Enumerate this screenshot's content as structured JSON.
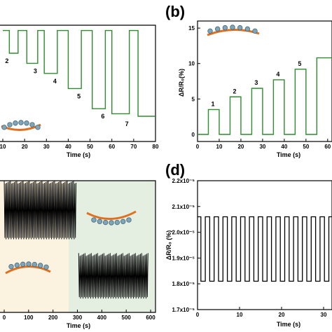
{
  "panels": {
    "b": {
      "label": "(b)"
    },
    "d": {
      "label": "(d)"
    }
  },
  "colors": {
    "green_trace": "#2e8b2e",
    "black_trace": "#000000",
    "bg_cream": "#fbf3df",
    "bg_mint": "#e4efe2",
    "arc_orange": "#e07020",
    "bead": "#7fa6b8"
  },
  "chart_data": [
    {
      "id": "a",
      "type": "line",
      "xlabel": "Time (s)",
      "ylabel": "",
      "xlim": [
        10,
        80
      ],
      "xticks": [
        10,
        20,
        30,
        40,
        50,
        60,
        70,
        80
      ],
      "step_labels": [
        "2",
        "3",
        "4",
        "5",
        "6",
        "7"
      ],
      "x": [
        10,
        13,
        13,
        17,
        17,
        21,
        21,
        26,
        26,
        29,
        29,
        35,
        35,
        40,
        40,
        46,
        46,
        51,
        51,
        57,
        57,
        60,
        60,
        68,
        68,
        72,
        72,
        80
      ],
      "y": [
        0.5,
        0.5,
        5,
        5,
        0.5,
        0.5,
        7,
        7,
        0.5,
        0.5,
        9,
        9,
        0.5,
        0.5,
        12,
        12,
        0.5,
        0.5,
        16,
        16,
        0.5,
        0.5,
        17,
        17,
        0.5,
        0.5,
        17.5,
        17.5
      ]
    },
    {
      "id": "b",
      "type": "line",
      "xlabel": "Time (s)",
      "ylabel": "ΔR/R₀(%)",
      "xlim": [
        0,
        62
      ],
      "ylim": [
        -1,
        16
      ],
      "xticks": [
        0,
        10,
        20,
        30,
        40,
        50,
        60
      ],
      "yticks": [
        0,
        5,
        10,
        15
      ],
      "step_labels": [
        "1",
        "2",
        "3",
        "4",
        "5"
      ],
      "x": [
        0,
        5,
        5,
        10,
        10,
        15,
        15,
        20,
        20,
        25,
        25,
        30,
        30,
        35,
        35,
        40,
        40,
        45,
        45,
        50,
        50,
        55,
        55,
        62
      ],
      "y": [
        0,
        0,
        3.5,
        3.5,
        0,
        0,
        5.3,
        5.3,
        0,
        0,
        6.5,
        6.5,
        0,
        0,
        7.7,
        7.7,
        0,
        0,
        9.2,
        9.2,
        0,
        0,
        10.8,
        10.8
      ]
    },
    {
      "id": "c",
      "type": "line",
      "xlabel": "Time (s)",
      "ylabel": "",
      "xlim": [
        0,
        620
      ],
      "xticks": [
        0,
        100,
        200,
        300,
        400,
        500,
        600
      ],
      "segments": [
        {
          "x_start": 0,
          "x_end": 295,
          "low": 0.55,
          "high": 1.0
        },
        {
          "x_start": 305,
          "x_end": 590,
          "low": 0.1,
          "high": 0.45
        }
      ]
    },
    {
      "id": "d",
      "type": "line",
      "xlabel": "Time (s)",
      "ylabel": "ΔR/R₀ (%)",
      "xlim": [
        0,
        32
      ],
      "ylim": [
        1.7e-05,
        2.2e-05
      ],
      "xticks": [
        0,
        10,
        20,
        30
      ],
      "xtick_labels": [
        "0",
        "10",
        "20",
        "30"
      ],
      "yticks": [
        1.7e-05,
        1.8e-05,
        1.9e-05,
        2e-05,
        2.1e-05,
        2.2e-05
      ],
      "ytick_labels": [
        "1.7x10⁻⁵",
        "1.8x10⁻⁵",
        "1.9x10⁻⁵",
        "2.0x10⁻⁵",
        "2.1x10⁻⁵",
        "2.2x10⁻⁵"
      ],
      "high": 2.06e-05,
      "low": 1.81e-05,
      "period": 2.1,
      "cycles": 15
    }
  ]
}
